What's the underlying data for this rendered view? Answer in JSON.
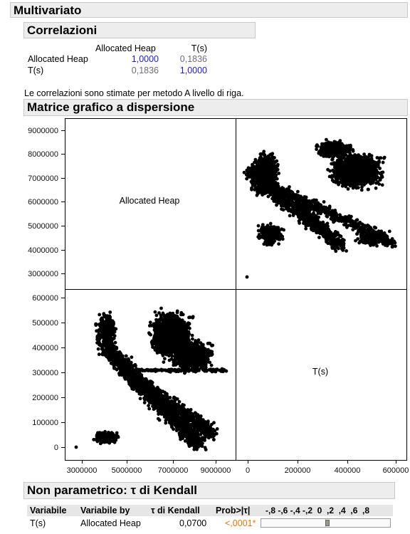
{
  "title": "Multivariato",
  "correlazioni": {
    "title": "Correlazioni",
    "col_headers": [
      "Allocated Heap",
      "T(s)"
    ],
    "rows": [
      {
        "label": "Allocated Heap",
        "values": [
          "1,0000",
          "0,1836"
        ]
      },
      {
        "label": "T(s)",
        "values": [
          "0,1836",
          "1,0000"
        ]
      }
    ],
    "note": "Le correlazioni sono stimate per metodo A livello di riga."
  },
  "matrix": {
    "title": "Matrice grafico a dispersione",
    "diag_labels": [
      "Allocated Heap",
      "T(s)"
    ],
    "y_ticks_top": [
      "9000000",
      "8000000",
      "7000000",
      "6000000",
      "5000000",
      "4000000",
      "3000000"
    ],
    "y_ticks_bottom": [
      "600000",
      "500000",
      "400000",
      "300000",
      "200000",
      "100000",
      "0"
    ],
    "x_ticks_left": [
      "3000000",
      "5000000",
      "7000000",
      "9000000"
    ],
    "x_ticks_right": [
      "0",
      "200000",
      "400000",
      "600000"
    ]
  },
  "kendall": {
    "title": "Non parametrico: τ di Kendall",
    "headers": {
      "variabile": "Variabile",
      "variabile_by": "Variabile by",
      "tau": "τ di Kendall",
      "prob": "Prob>|τ|",
      "scale": "-,8 -,6 -,4 -,2  0  ,2  ,4  ,6  ,8"
    },
    "row": {
      "variabile": "T(s)",
      "variabile_by": "Allocated Heap",
      "tau": "0,0700",
      "prob": "<,0001*",
      "bar_value": 0.07
    }
  },
  "colors": {
    "blue": "#1d1dc0",
    "orange": "#e07a10",
    "header_bg": "#ededed"
  }
}
